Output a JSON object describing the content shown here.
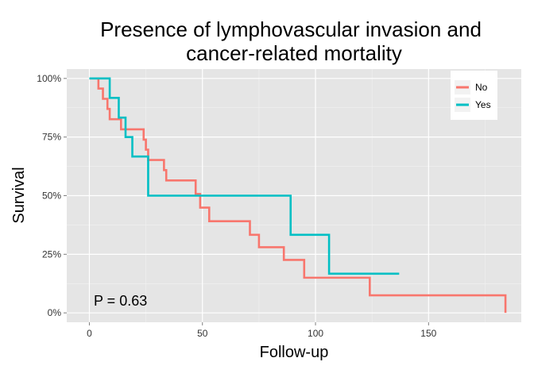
{
  "chart_data": {
    "type": "line",
    "step": true,
    "title": [
      "Presence of lymphovascular invasion and",
      "cancer-related mortality"
    ],
    "xlabel": "Follow-up",
    "ylabel": "Survival",
    "xlim": [
      -10,
      191
    ],
    "ylim": [
      -0.04,
      1.04
    ],
    "x_ticks": [
      0,
      50,
      100,
      150
    ],
    "x_tick_labels": [
      "0",
      "50",
      "100",
      "150"
    ],
    "y_ticks": [
      0,
      0.25,
      0.5,
      0.75,
      1.0
    ],
    "y_tick_labels": [
      "0%",
      "25%",
      "50%",
      "75%",
      "100%"
    ],
    "grid": true,
    "legend_position": "top-right",
    "annotation": "P = 0.63",
    "series": [
      {
        "name": "No",
        "color": "#F8766D",
        "x": [
          0,
          4,
          6,
          8,
          9,
          14,
          24,
          25,
          26,
          33,
          34,
          47,
          49,
          53,
          71,
          75,
          86,
          95,
          124,
          184,
          184
        ],
        "y": [
          1.0,
          0.957,
          0.913,
          0.87,
          0.826,
          0.783,
          0.739,
          0.696,
          0.652,
          0.609,
          0.565,
          0.507,
          0.449,
          0.391,
          0.333,
          0.28,
          0.226,
          0.15,
          0.075,
          0.075,
          0.0
        ]
      },
      {
        "name": "Yes",
        "color": "#00BFC4",
        "x": [
          0,
          9,
          13,
          16,
          19,
          26,
          89,
          106,
          137
        ],
        "y": [
          1.0,
          0.917,
          0.833,
          0.75,
          0.667,
          0.5,
          0.333,
          0.167,
          0.167
        ]
      }
    ]
  }
}
